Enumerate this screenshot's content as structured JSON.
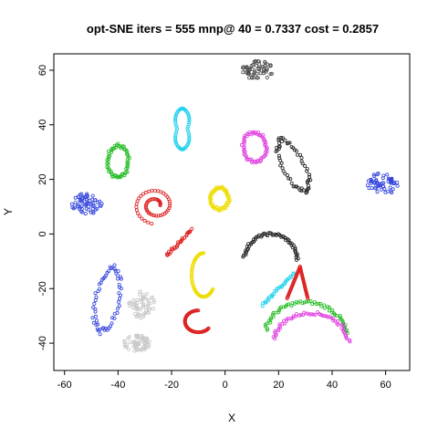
{
  "chart_data": {
    "type": "scatter",
    "title": "opt-SNE iters = 555 mnp@ 40 = 0.7337 cost = 0.2857",
    "xlabel": "X",
    "ylabel": "Y",
    "xlim": [
      -64,
      69
    ],
    "ylim": [
      -50,
      66
    ],
    "x_ticks": [
      -60,
      -40,
      -20,
      0,
      20,
      40,
      60
    ],
    "y_ticks": [
      -40,
      -20,
      0,
      20,
      40,
      60
    ],
    "grid": false,
    "legend": "none",
    "marker": "open-circle",
    "clusters": [
      {
        "id": "gray-top",
        "color": "#4d4d4d",
        "shape": "blob",
        "center": [
          12,
          60
        ],
        "radii": [
          6,
          3.5
        ]
      },
      {
        "id": "cyan-top",
        "color": "#22d3ee",
        "shape": "figure8",
        "center": [
          -16,
          38.5
        ],
        "radii": [
          3.2,
          7.5
        ]
      },
      {
        "id": "magenta-top",
        "color": "#e040e0",
        "shape": "ellipse",
        "center": [
          11,
          32
        ],
        "radii": [
          4.5,
          5.5
        ]
      },
      {
        "id": "green-left",
        "color": "#22bb22",
        "shape": "ellipse",
        "center": [
          -40,
          26.5
        ],
        "radii": [
          4,
          6
        ]
      },
      {
        "id": "black-right",
        "color": "#222222",
        "shape": "tilted-ellipse",
        "center": [
          25.5,
          25
        ],
        "radii": [
          4,
          10.5
        ],
        "angle": 28
      },
      {
        "id": "blue-right",
        "color": "#3344dd",
        "shape": "blob",
        "center": [
          59,
          18.5
        ],
        "radii": [
          6,
          4
        ]
      },
      {
        "id": "blue-left",
        "color": "#3344dd",
        "shape": "blob",
        "center": [
          -52,
          11
        ],
        "radii": [
          6,
          3.8
        ]
      },
      {
        "id": "red-spiral",
        "color": "#dd2222",
        "shape": "spiral",
        "center": [
          -26,
          10.5
        ],
        "radii": [
          7,
          6
        ]
      },
      {
        "id": "yellow-top",
        "color": "#eedd00",
        "shape": "ellipse",
        "center": [
          -2,
          13
        ],
        "radii": [
          3.5,
          4
        ]
      },
      {
        "id": "yellow-mid",
        "color": "#eedd00",
        "shape": "hook",
        "center": [
          -8,
          -15
        ],
        "radii": [
          4.5,
          8
        ]
      },
      {
        "id": "blue-big",
        "color": "#3344dd",
        "shape": "tilted-ellipse",
        "center": [
          -44,
          -24
        ],
        "radii": [
          4.5,
          12
        ],
        "angle": -12
      },
      {
        "id": "lightgray-mid",
        "color": "#c8c8c8",
        "shape": "blob",
        "center": [
          -31,
          -26
        ],
        "radii": [
          5,
          5
        ]
      },
      {
        "id": "lightgray-bottom",
        "color": "#c8c8c8",
        "shape": "blob",
        "center": [
          -33,
          -40
        ],
        "radii": [
          5,
          3
        ]
      },
      {
        "id": "black-arc",
        "color": "#222222",
        "shape": "arc",
        "center": [
          17,
          -10
        ],
        "radii": [
          10,
          10
        ]
      },
      {
        "id": "cyan-lower",
        "color": "#22d3ee",
        "shape": "strand",
        "center": [
          20,
          -20
        ],
        "radii": [
          6,
          6
        ]
      },
      {
        "id": "red-lower",
        "color": "#dd2222",
        "shape": "chevron",
        "center": [
          28,
          -18
        ],
        "radii": [
          5,
          6
        ]
      },
      {
        "id": "green-arc",
        "color": "#22bb22",
        "shape": "arc",
        "center": [
          30,
          -37
        ],
        "radii": [
          15,
          12
        ]
      },
      {
        "id": "magenta-arc",
        "color": "#e040e0",
        "shape": "arc",
        "center": [
          32,
          -40
        ],
        "radii": [
          14,
          11
        ]
      },
      {
        "id": "red-strand-mid",
        "color": "#dd2222",
        "shape": "strand",
        "center": [
          -17,
          -3
        ],
        "radii": [
          5,
          5
        ]
      },
      {
        "id": "red-hook-bottom",
        "color": "#dd2222",
        "shape": "hook",
        "center": [
          -10,
          -32
        ],
        "radii": [
          5,
          4
        ]
      }
    ]
  }
}
